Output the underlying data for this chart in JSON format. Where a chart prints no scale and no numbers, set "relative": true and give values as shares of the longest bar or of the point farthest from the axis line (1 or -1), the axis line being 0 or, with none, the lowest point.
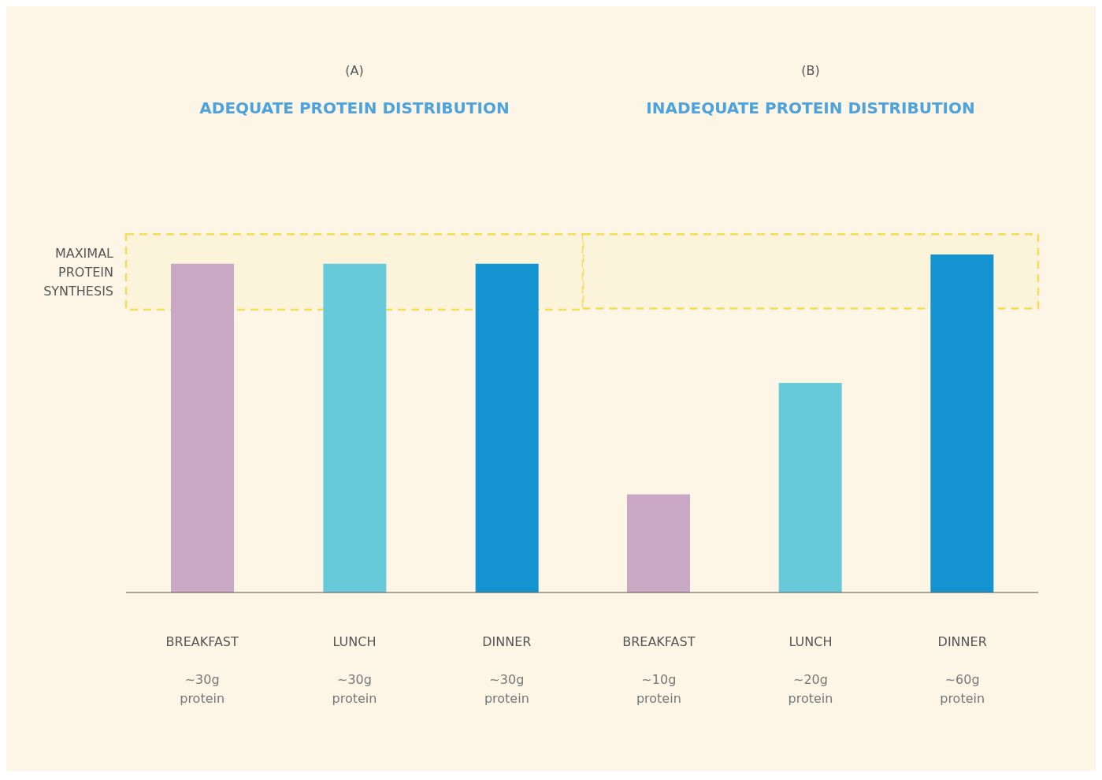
{
  "chart_data": [
    {
      "type": "bar",
      "subtitle": "(A)",
      "title": "ADEQUATE PROTEIN DISTRIBUTION",
      "relative": true,
      "categories": [
        "BREAKFAST\n~30g\nprotein",
        "LUNCH\n~30g\nprotein",
        "DINNER\n~30g\nprotein"
      ],
      "values": [
        1,
        1,
        1
      ],
      "colors": [
        "#c8a8c4",
        "#68c9d9",
        "#1393d0"
      ],
      "bands": [
        {
          "axis": "y",
          "from": 0.86,
          "to": 1.09,
          "label": "MAXIMAL\nPROTEIN\nSYNTHESIS",
          "color": "#f7dc55"
        }
      ],
      "grid": false,
      "legend": false
    },
    {
      "type": "bar",
      "subtitle": "(B)",
      "title": "INADEQUATE PROTEIN DISTRIBUTION",
      "relative": true,
      "categories": [
        "BREAKFAST\n~10g\nprotein",
        "LUNCH\n~20g\nprotein",
        "DINNER\n~60g\nprotein"
      ],
      "values": [
        0.29,
        0.62,
        1
      ],
      "colors": [
        "#c8a8c4",
        "#68c9d9",
        "#1393d0"
      ],
      "bands": [
        {
          "axis": "y",
          "from": 0.84,
          "to": 1.06,
          "color": "#f7dc55"
        }
      ],
      "grid": false,
      "legend": false
    }
  ]
}
